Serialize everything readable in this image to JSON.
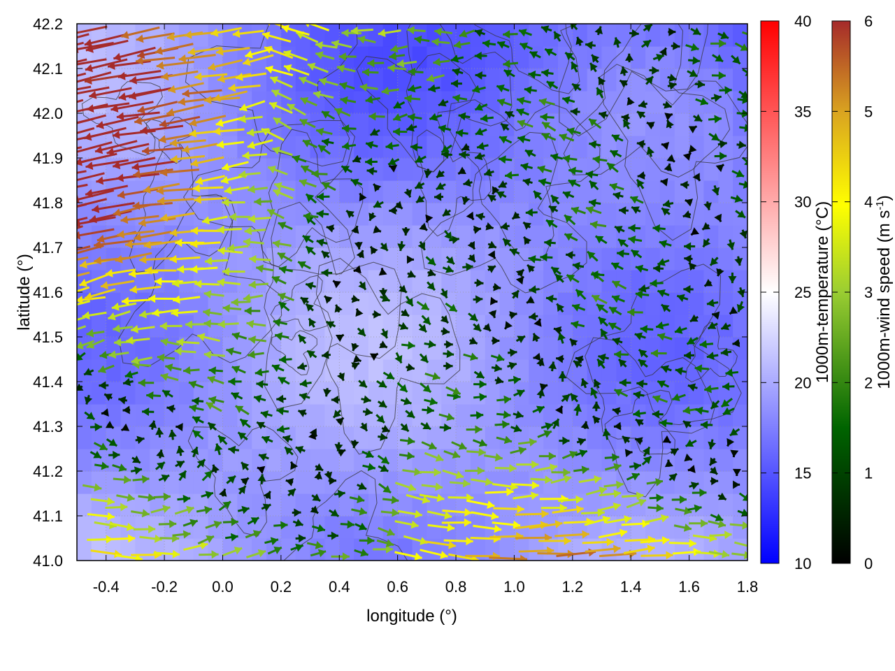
{
  "chart_data": {
    "type": "heatmap",
    "subtype": "map with temperature shading, terrain contours and wind vectors",
    "xlabel": "longitude (°)",
    "ylabel": "latitude (°)",
    "xlim": [
      -0.5,
      1.8
    ],
    "ylim": [
      41.0,
      42.2
    ],
    "x_ticks": [
      "-0.4",
      "-0.2",
      "0.0",
      "0.2",
      "0.4",
      "0.6",
      "0.8",
      "1.0",
      "1.2",
      "1.4",
      "1.6",
      "1.8"
    ],
    "y_ticks": [
      "41.0",
      "41.1",
      "41.2",
      "41.3",
      "41.4",
      "41.5",
      "41.6",
      "41.7",
      "41.8",
      "41.9",
      "42.0",
      "42.1",
      "42.2"
    ],
    "grid": true,
    "temperature_colorbar": {
      "label": "1000m-temperature (°C)",
      "range": [
        10,
        40
      ],
      "ticks": [
        "10",
        "15",
        "20",
        "25",
        "30",
        "35",
        "40"
      ],
      "colors": [
        "#0000ff",
        "#ffffff",
        "#ff0000"
      ]
    },
    "wind_colorbar": {
      "label_main": "1000m-wind speed (m s",
      "label_sup": "-1",
      "label_end": ")",
      "range": [
        0,
        6
      ],
      "ticks": [
        "0",
        "1",
        "2",
        "3",
        "4",
        "5",
        "6"
      ],
      "colors": [
        "#000000",
        "#006400",
        "#9acd32",
        "#ffff00",
        "#daa520",
        "#a52a2a"
      ]
    },
    "temperature_field_range": [
      14,
      23
    ],
    "wind_speed_range": [
      0,
      6
    ]
  }
}
